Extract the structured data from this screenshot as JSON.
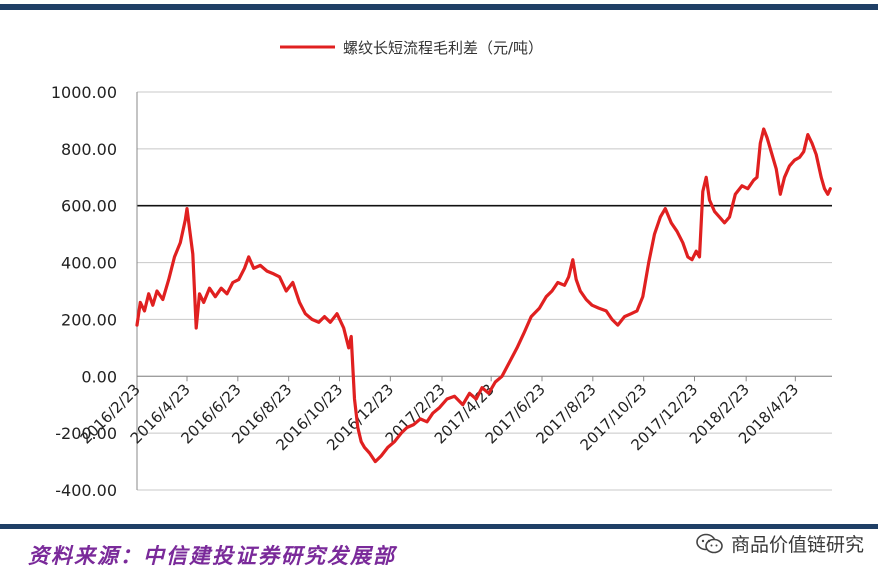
{
  "chart_data": {
    "type": "line",
    "title": "",
    "legend": {
      "label": "螺纹长短流程毛利差（元/吨）",
      "placement": "top-center"
    },
    "xlabel": "",
    "ylabel": "",
    "ylim": [
      -400,
      1000
    ],
    "y_ticks": [
      "1000.00",
      "800.00",
      "600.00",
      "400.00",
      "200.00",
      "0.00",
      "-200.00",
      "-400.00"
    ],
    "x_ticks": [
      "2016/2/23",
      "2016/4/23",
      "2016/6/23",
      "2016/8/23",
      "2016/10/23",
      "2016/12/23",
      "2017/2/23",
      "2017/4/23",
      "2017/6/23",
      "2017/8/23",
      "2017/10/23",
      "2017/12/23",
      "2018/2/23",
      "2018/4/23"
    ],
    "grid": true,
    "reference_line": 600,
    "series": [
      {
        "name": "螺纹长短流程毛利差（元/吨）",
        "color": "#e02020",
        "points": [
          [
            "2016-02-23",
            180
          ],
          [
            "2016-02-27",
            260
          ],
          [
            "2016-03-03",
            230
          ],
          [
            "2016-03-08",
            290
          ],
          [
            "2016-03-13",
            250
          ],
          [
            "2016-03-18",
            300
          ],
          [
            "2016-03-25",
            270
          ],
          [
            "2016-04-01",
            340
          ],
          [
            "2016-04-08",
            420
          ],
          [
            "2016-04-15",
            470
          ],
          [
            "2016-04-21",
            550
          ],
          [
            "2016-04-23",
            590
          ],
          [
            "2016-04-26",
            520
          ],
          [
            "2016-04-30",
            430
          ],
          [
            "2016-05-04",
            170
          ],
          [
            "2016-05-08",
            290
          ],
          [
            "2016-05-13",
            260
          ],
          [
            "2016-05-20",
            310
          ],
          [
            "2016-05-27",
            280
          ],
          [
            "2016-06-03",
            310
          ],
          [
            "2016-06-10",
            290
          ],
          [
            "2016-06-17",
            330
          ],
          [
            "2016-06-24",
            340
          ],
          [
            "2016-07-01",
            380
          ],
          [
            "2016-07-06",
            420
          ],
          [
            "2016-07-12",
            380
          ],
          [
            "2016-07-20",
            390
          ],
          [
            "2016-07-28",
            370
          ],
          [
            "2016-08-05",
            360
          ],
          [
            "2016-08-12",
            350
          ],
          [
            "2016-08-20",
            300
          ],
          [
            "2016-08-28",
            330
          ],
          [
            "2016-09-05",
            260
          ],
          [
            "2016-09-12",
            220
          ],
          [
            "2016-09-20",
            200
          ],
          [
            "2016-09-28",
            190
          ],
          [
            "2016-10-05",
            210
          ],
          [
            "2016-10-12",
            190
          ],
          [
            "2016-10-20",
            220
          ],
          [
            "2016-10-28",
            170
          ],
          [
            "2016-11-03",
            100
          ],
          [
            "2016-11-06",
            140
          ],
          [
            "2016-11-10",
            -80
          ],
          [
            "2016-11-14",
            -180
          ],
          [
            "2016-11-18",
            -230
          ],
          [
            "2016-11-22",
            -250
          ],
          [
            "2016-11-28",
            -270
          ],
          [
            "2016-12-05",
            -300
          ],
          [
            "2016-12-12",
            -280
          ],
          [
            "2016-12-20",
            -250
          ],
          [
            "2016-12-28",
            -230
          ],
          [
            "2017-01-05",
            -200
          ],
          [
            "2017-01-12",
            -180
          ],
          [
            "2017-01-20",
            -170
          ],
          [
            "2017-01-28",
            -150
          ],
          [
            "2017-02-05",
            -160
          ],
          [
            "2017-02-12",
            -130
          ],
          [
            "2017-02-20",
            -110
          ],
          [
            "2017-03-01",
            -80
          ],
          [
            "2017-03-10",
            -70
          ],
          [
            "2017-03-20",
            -100
          ],
          [
            "2017-03-28",
            -60
          ],
          [
            "2017-04-05",
            -80
          ],
          [
            "2017-04-12",
            -40
          ],
          [
            "2017-04-20",
            -60
          ],
          [
            "2017-04-28",
            -20
          ],
          [
            "2017-05-06",
            0
          ],
          [
            "2017-05-15",
            50
          ],
          [
            "2017-05-24",
            100
          ],
          [
            "2017-06-01",
            150
          ],
          [
            "2017-06-10",
            210
          ],
          [
            "2017-06-20",
            240
          ],
          [
            "2017-06-28",
            280
          ],
          [
            "2017-07-05",
            300
          ],
          [
            "2017-07-12",
            330
          ],
          [
            "2017-07-20",
            320
          ],
          [
            "2017-07-25",
            350
          ],
          [
            "2017-07-30",
            410
          ],
          [
            "2017-08-03",
            340
          ],
          [
            "2017-08-08",
            300
          ],
          [
            "2017-08-15",
            270
          ],
          [
            "2017-08-22",
            250
          ],
          [
            "2017-08-30",
            240
          ],
          [
            "2017-09-08",
            230
          ],
          [
            "2017-09-15",
            200
          ],
          [
            "2017-09-22",
            180
          ],
          [
            "2017-09-30",
            210
          ],
          [
            "2017-10-08",
            220
          ],
          [
            "2017-10-15",
            230
          ],
          [
            "2017-10-22",
            280
          ],
          [
            "2017-10-29",
            400
          ],
          [
            "2017-11-05",
            500
          ],
          [
            "2017-11-12",
            560
          ],
          [
            "2017-11-18",
            590
          ],
          [
            "2017-11-25",
            540
          ],
          [
            "2017-12-02",
            510
          ],
          [
            "2017-12-09",
            470
          ],
          [
            "2017-12-15",
            420
          ],
          [
            "2017-12-20",
            410
          ],
          [
            "2017-12-25",
            440
          ],
          [
            "2017-12-29",
            420
          ],
          [
            "2018-01-02",
            650
          ],
          [
            "2018-01-06",
            700
          ],
          [
            "2018-01-10",
            620
          ],
          [
            "2018-01-16",
            580
          ],
          [
            "2018-01-22",
            560
          ],
          [
            "2018-01-28",
            540
          ],
          [
            "2018-02-03",
            560
          ],
          [
            "2018-02-10",
            640
          ],
          [
            "2018-02-18",
            670
          ],
          [
            "2018-02-25",
            660
          ],
          [
            "2018-03-04",
            690
          ],
          [
            "2018-03-08",
            700
          ],
          [
            "2018-03-12",
            820
          ],
          [
            "2018-03-16",
            870
          ],
          [
            "2018-03-20",
            840
          ],
          [
            "2018-03-26",
            780
          ],
          [
            "2018-03-31",
            730
          ],
          [
            "2018-04-05",
            640
          ],
          [
            "2018-04-10",
            700
          ],
          [
            "2018-04-16",
            740
          ],
          [
            "2018-04-22",
            760
          ],
          [
            "2018-04-28",
            770
          ],
          [
            "2018-05-03",
            790
          ],
          [
            "2018-05-08",
            850
          ],
          [
            "2018-05-13",
            820
          ],
          [
            "2018-05-18",
            780
          ],
          [
            "2018-05-24",
            700
          ],
          [
            "2018-05-28",
            660
          ],
          [
            "2018-06-01",
            640
          ],
          [
            "2018-06-04",
            660
          ]
        ]
      }
    ]
  },
  "footer": {
    "source": "资料来源：中信建投证券研究发展部",
    "watermark": "商品价值链研究",
    "watermark_icon": "wechat-icon"
  },
  "colors": {
    "frame": "#1f3f66",
    "line": "#e02020",
    "source_text": "#7a2a9a"
  }
}
